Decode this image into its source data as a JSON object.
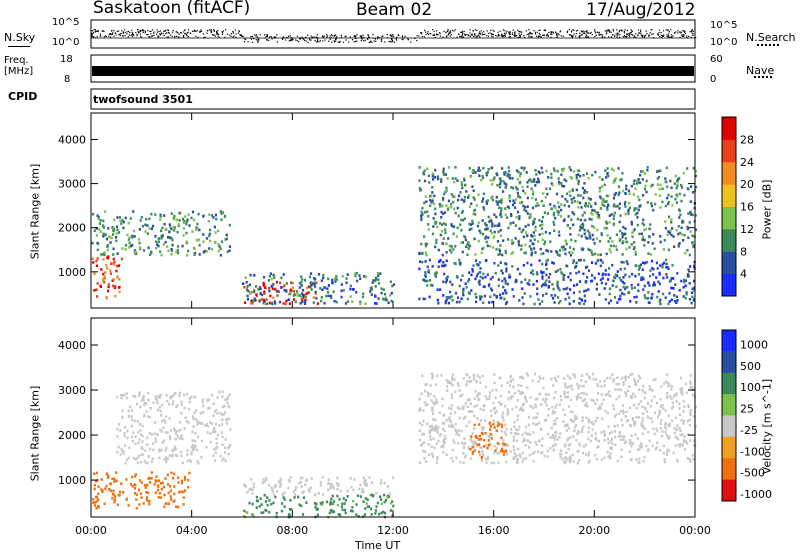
{
  "header": {
    "title": "Saskatoon (fitACF)",
    "beam": "Beam 02",
    "date": "17/Aug/2012"
  },
  "top_panels": {
    "nsky_label": "N.Sky",
    "nsky_ticks": [
      "10^5",
      "10^0"
    ],
    "nsearch_label": "N.Search",
    "nsearch_ticks": [
      "10^5",
      "10^0"
    ],
    "freq_label": "Freq.",
    "freq_unit": "[MHz]",
    "freq_ticks": [
      "18",
      "8"
    ],
    "nave_label": "Nave",
    "nave_ticks": [
      "60",
      "0"
    ],
    "cpid_label": "CPID",
    "cpid_value": "twofsound 3501"
  },
  "chart_data": [
    {
      "type": "heatmap",
      "name": "power",
      "xlabel": "Time UT",
      "ylabel": "Slant Range [km]",
      "x_ticks": [
        "00:00",
        "04:00",
        "08:00",
        "12:00",
        "16:00",
        "20:00",
        "00:00"
      ],
      "y_ticks": [
        "1000",
        "2000",
        "3000",
        "4000"
      ],
      "ylim": [
        180,
        4600
      ],
      "colorbar_label": "Power [dB]",
      "colorbar_ticks": [
        "4",
        "8",
        "12",
        "16",
        "20",
        "24",
        "28"
      ],
      "colorbar_colors": [
        "#1a2cff",
        "#2b4fa0",
        "#3a8a5a",
        "#7ac24a",
        "#f0c020",
        "#f08c20",
        "#e8401a",
        "#e00000"
      ],
      "regions": [
        {
          "t": [
            0.0,
            1.2
          ],
          "r": [
            400,
            1400
          ],
          "level": 26
        },
        {
          "t": [
            0.0,
            5.5
          ],
          "r": [
            1400,
            2400
          ],
          "level": 10
        },
        {
          "t": [
            6.0,
            9.0
          ],
          "r": [
            300,
            800
          ],
          "level": 27
        },
        {
          "t": [
            6.0,
            12.0
          ],
          "r": [
            300,
            1000
          ],
          "level": 8
        },
        {
          "t": [
            13.0,
            24.0
          ],
          "r": [
            1400,
            3400
          ],
          "level": 9
        },
        {
          "t": [
            13.0,
            24.0
          ],
          "r": [
            300,
            1300
          ],
          "level": 6
        }
      ]
    },
    {
      "type": "heatmap",
      "name": "velocity",
      "xlabel": "Time UT",
      "ylabel": "Slant Range [km]",
      "x_ticks": [
        "00:00",
        "04:00",
        "08:00",
        "12:00",
        "16:00",
        "20:00",
        "00:00"
      ],
      "y_ticks": [
        "1000",
        "2000",
        "3000",
        "4000"
      ],
      "ylim": [
        180,
        4600
      ],
      "colorbar_label": "Velocity [m s^-1]",
      "colorbar_ticks": [
        "1000",
        "500",
        "100",
        "25",
        "-25",
        "-100",
        "-500",
        "-1000"
      ],
      "colorbar_colors": [
        "#1a2cff",
        "#2b4fa0",
        "#3a8a5a",
        "#7ac24a",
        "#c8c8c8",
        "#f0a020",
        "#f07010",
        "#e01010",
        "#e00000"
      ],
      "regions": [
        {
          "t": [
            0.0,
            4.0
          ],
          "r": [
            400,
            1200
          ],
          "level": -300
        },
        {
          "t": [
            1.0,
            5.5
          ],
          "r": [
            1400,
            3000
          ],
          "level": 0
        },
        {
          "t": [
            6.0,
            12.0
          ],
          "r": [
            200,
            700
          ],
          "level": 80
        },
        {
          "t": [
            6.0,
            12.0
          ],
          "r": [
            700,
            1100
          ],
          "level": 0
        },
        {
          "t": [
            13.0,
            24.0
          ],
          "r": [
            1400,
            3400
          ],
          "level": 0
        },
        {
          "t": [
            15.0,
            16.5
          ],
          "r": [
            1500,
            2300
          ],
          "level": -300
        }
      ]
    }
  ]
}
